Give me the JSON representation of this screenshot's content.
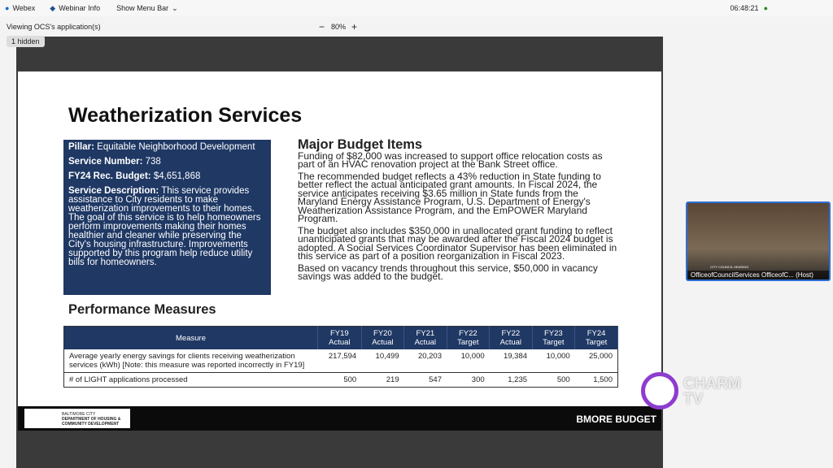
{
  "app_bar": {
    "app": "Webex",
    "info": "Webinar Info",
    "menu": "Show Menu Bar",
    "time": "06:48:21"
  },
  "share_bar": {
    "viewing": "Viewing OCS's application(s)",
    "zoom": "80%",
    "hidden": "1 hidden"
  },
  "slide": {
    "title": "Weatherization Services",
    "pillar_box": [
      {
        "label": "Pillar:",
        "value": "Equitable Neighborhood Development"
      },
      {
        "label": "Service Number:",
        "value": "738"
      },
      {
        "label": "FY24 Rec. Budget:",
        "value": "$4,651,868"
      },
      {
        "label": "Service Description:",
        "value": "This service provides assistance to City residents to make weatherization improvements to their homes. The goal of this service is to help homeowners perform improvements making their homes healthier and cleaner while preserving the City's housing infrastructure. Improvements supported by this program help reduce utility bills for homeowners."
      }
    ],
    "budget_heading": "Major Budget Items",
    "budget_items": [
      "Funding of $82,000 was increased to support office relocation costs as part of an HVAC renovation project at the Bank Street office.",
      "The recommended budget reflects a 43% reduction in State funding to better reflect the actual anticipated grant amounts. In Fiscal 2024, the service anticipates receiving $3.65 million in State funds from the Maryland Energy Assistance Program, U.S. Department of Energy's Weatherization Assistance Program, and the EmPOWER Maryland Program.",
      "The budget also includes $350,000 in unallocated grant funding to reflect unanticipated grants that may be awarded after the Fiscal 2024 budget is adopted. A Social Services Coordinator Supervisor has been eliminated in this service as part of a position reorganization in Fiscal 2023.",
      "Based on vacancy trends throughout this service, $50,000 in vacancy savings was added to the budget."
    ],
    "performance_heading": "Performance Measures",
    "table": {
      "header": [
        "Measure",
        "FY19 Actual",
        "FY20 Actual",
        "FY21 Actual",
        "FY22 Target",
        "FY22 Actual",
        "FY23 Target",
        "FY24 Target"
      ],
      "rows": [
        [
          "Average yearly energy savings for clients receiving weatherization services (kWh) [Note: this measure was reported incorrectly in FY19]",
          "217,594",
          "10,499",
          "20,203",
          "10,000",
          "19,384",
          "10,000",
          "25,000"
        ],
        [
          "# of LIGHT applications processed",
          "500",
          "219",
          "547",
          "300",
          "1,235",
          "500",
          "1,500"
        ]
      ]
    },
    "footer": {
      "city": "BALTIMORE CITY",
      "department": "DEPARTMENT OF HOUSING & COMMUNITY DEVELOPMENT",
      "brand": "BMORE BUDGET"
    }
  },
  "video": {
    "banner": "CITY COUNCIL HEARING",
    "caption": "OfficeofCouncilServices OfficeofC... (Host)"
  },
  "watermark": "CHARM TV"
}
